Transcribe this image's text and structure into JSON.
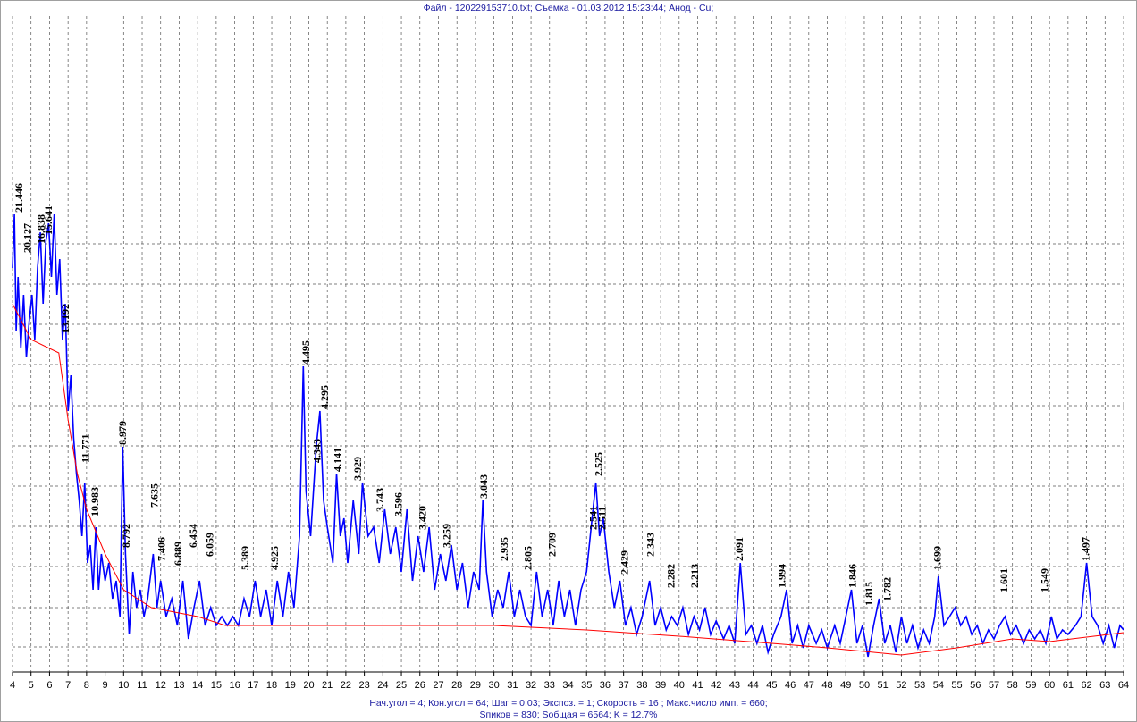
{
  "chart_data": {
    "type": "line",
    "title": "Файл - 120229153710.txt;  Съемка - 01.03.2012 15:23:44;  Анод - Cu;",
    "footer": [
      "Нач.угол = 4;  Кон.угол = 64;  Шаг = 0.03;  Экспоз. = 1;  Скорость = 16 ;  Макс.число имп. = 660;",
      "Sпиков =   830;  Sобщая =   6564;  K =  12.7%"
    ],
    "xlim": [
      4,
      64
    ],
    "xticks": [
      4,
      5,
      6,
      7,
      8,
      9,
      10,
      11,
      12,
      13,
      14,
      15,
      16,
      17,
      18,
      19,
      20,
      21,
      22,
      23,
      24,
      25,
      26,
      27,
      28,
      29,
      30,
      31,
      32,
      33,
      34,
      35,
      36,
      37,
      38,
      39,
      40,
      41,
      42,
      43,
      44,
      45,
      46,
      47,
      48,
      49,
      50,
      51,
      52,
      53,
      54,
      55,
      56,
      57,
      58,
      59,
      60,
      61,
      62,
      63,
      64
    ],
    "ylim": [
      0,
      734
    ],
    "ygrid": [
      28,
      72,
      118,
      163,
      208,
      253,
      298,
      344,
      389,
      434,
      479
    ],
    "grid": true,
    "series": [
      {
        "color": "#0000ff",
        "x": [
          4.0,
          4.1,
          4.2,
          4.3,
          4.45,
          4.6,
          4.75,
          4.9,
          5.05,
          5.2,
          5.35,
          5.5,
          5.65,
          5.8,
          5.95,
          6.1,
          6.25,
          6.4,
          6.55,
          6.7,
          6.85,
          7.0,
          7.15,
          7.3,
          7.45,
          7.6,
          7.75,
          7.9,
          8.05,
          8.2,
          8.35,
          8.5,
          8.65,
          8.8,
          9.0,
          9.2,
          9.4,
          9.6,
          9.8,
          9.95,
          10.1,
          10.3,
          10.5,
          10.7,
          10.9,
          11.1,
          11.3,
          11.6,
          11.8,
          12.0,
          12.3,
          12.6,
          12.9,
          13.2,
          13.5,
          13.8,
          14.1,
          14.4,
          14.7,
          15.0,
          15.3,
          15.6,
          15.9,
          16.2,
          16.5,
          16.8,
          17.1,
          17.4,
          17.7,
          18.0,
          18.3,
          18.6,
          18.9,
          19.2,
          19.5,
          19.7,
          19.85,
          20.1,
          20.4,
          20.6,
          20.8,
          21.0,
          21.3,
          21.5,
          21.7,
          21.9,
          22.1,
          22.4,
          22.7,
          22.9,
          23.2,
          23.5,
          23.8,
          24.1,
          24.4,
          24.7,
          25.0,
          25.3,
          25.6,
          25.9,
          26.2,
          26.5,
          26.8,
          27.1,
          27.4,
          27.7,
          28.0,
          28.3,
          28.6,
          28.9,
          29.2,
          29.4,
          29.6,
          29.9,
          30.2,
          30.5,
          30.8,
          31.1,
          31.4,
          31.7,
          32.0,
          32.3,
          32.6,
          32.9,
          33.2,
          33.5,
          33.8,
          34.1,
          34.4,
          34.7,
          35.0,
          35.3,
          35.5,
          35.7,
          35.9,
          36.2,
          36.5,
          36.8,
          37.1,
          37.4,
          37.7,
          38.0,
          38.4,
          38.7,
          39.0,
          39.3,
          39.6,
          39.9,
          40.2,
          40.5,
          40.8,
          41.1,
          41.4,
          41.7,
          42.0,
          42.4,
          42.7,
          43.0,
          43.3,
          43.6,
          43.9,
          44.2,
          44.5,
          44.8,
          45.1,
          45.5,
          45.8,
          46.1,
          46.4,
          46.7,
          47.0,
          47.4,
          47.7,
          48.0,
          48.4,
          48.7,
          49.0,
          49.3,
          49.6,
          49.9,
          50.2,
          50.5,
          50.8,
          51.1,
          51.4,
          51.7,
          52.0,
          52.3,
          52.6,
          52.9,
          53.2,
          53.5,
          53.8,
          54.0,
          54.3,
          54.6,
          54.9,
          55.2,
          55.5,
          55.8,
          56.1,
          56.4,
          56.7,
          57.0,
          57.3,
          57.6,
          57.9,
          58.2,
          58.6,
          58.9,
          59.2,
          59.5,
          59.8,
          60.1,
          60.4,
          60.7,
          61.0,
          61.4,
          61.7,
          62.0,
          62.3,
          62.6,
          62.9,
          63.2,
          63.5,
          63.8,
          64.0
        ],
        "values": [
          452,
          512,
          382,
          442,
          362,
          422,
          352,
          392,
          422,
          372,
          452,
          492,
          412,
          482,
          502,
          442,
          512,
          422,
          462,
          372,
          412,
          292,
          332,
          262,
          222,
          192,
          152,
          212,
          122,
          142,
          92,
          162,
          92,
          132,
          102,
          122,
          82,
          102,
          62,
          252,
          132,
          42,
          112,
          72,
          92,
          62,
          82,
          132,
          72,
          102,
          62,
          82,
          52,
          102,
          37,
          72,
          102,
          52,
          72,
          52,
          62,
          52,
          62,
          52,
          82,
          62,
          102,
          62,
          92,
          52,
          102,
          62,
          112,
          72,
          152,
          342,
          202,
          152,
          252,
          292,
          192,
          162,
          122,
          222,
          152,
          172,
          122,
          192,
          132,
          212,
          152,
          162,
          122,
          182,
          132,
          162,
          112,
          182,
          102,
          152,
          112,
          162,
          92,
          132,
          102,
          142,
          92,
          122,
          72,
          112,
          92,
          192,
          112,
          62,
          92,
          72,
          112,
          62,
          92,
          62,
          52,
          112,
          62,
          92,
          52,
          102,
          62,
          92,
          52,
          92,
          112,
          172,
          212,
          152,
          172,
          112,
          72,
          102,
          52,
          72,
          42,
          62,
          102,
          52,
          72,
          47,
          62,
          52,
          72,
          42,
          62,
          47,
          72,
          42,
          57,
          37,
          52,
          32,
          122,
          42,
          52,
          32,
          52,
          22,
          42,
          62,
          92,
          32,
          52,
          27,
          52,
          32,
          47,
          27,
          52,
          32,
          62,
          92,
          32,
          52,
          17,
          52,
          82,
          32,
          52,
          22,
          62,
          32,
          52,
          27,
          47,
          32,
          62,
          107,
          52,
          62,
          72,
          52,
          62,
          42,
          52,
          32,
          47,
          37,
          52,
          62,
          42,
          52,
          32,
          47,
          37,
          47,
          32,
          62,
          37,
          47,
          42,
          52,
          62,
          122,
          62,
          52,
          32,
          52,
          27,
          52,
          47
        ]
      },
      {
        "color": "#ff0000",
        "x": [
          4,
          5,
          6.5,
          7.0,
          7.5,
          8,
          9,
          10,
          11.5,
          14,
          15.5,
          30,
          35,
          40,
          45,
          48,
          52,
          55,
          58,
          60,
          64
        ],
        "values": [
          412,
          372,
          357,
          282,
          222,
          182,
          132,
          92,
          72,
          62,
          52,
          52,
          47,
          40,
          32,
          27,
          19,
          27,
          37,
          34,
          44
        ]
      }
    ],
    "annotations": [
      {
        "x": 4.4,
        "y": 512,
        "label": "21.446"
      },
      {
        "x": 4.85,
        "y": 467,
        "label": "20.127"
      },
      {
        "x": 5.6,
        "y": 477,
        "label": "16.838"
      },
      {
        "x": 6.0,
        "y": 487,
        "label": "15.641"
      },
      {
        "x": 6.9,
        "y": 377,
        "label": "13.192"
      },
      {
        "x": 8.0,
        "y": 232,
        "label": "11.771"
      },
      {
        "x": 8.5,
        "y": 172,
        "label": "10.983"
      },
      {
        "x": 10.0,
        "y": 252,
        "label": "8.979"
      },
      {
        "x": 10.2,
        "y": 137,
        "label": "8.792"
      },
      {
        "x": 11.7,
        "y": 182,
        "label": "7.635"
      },
      {
        "x": 12.1,
        "y": 122,
        "label": "7.406"
      },
      {
        "x": 13.0,
        "y": 117,
        "label": "6.889"
      },
      {
        "x": 13.8,
        "y": 137,
        "label": "6.454"
      },
      {
        "x": 14.7,
        "y": 127,
        "label": "6.059"
      },
      {
        "x": 16.6,
        "y": 112,
        "label": "5.389"
      },
      {
        "x": 18.2,
        "y": 112,
        "label": "4.925"
      },
      {
        "x": 19.9,
        "y": 342,
        "label": "4.495"
      },
      {
        "x": 20.5,
        "y": 232,
        "label": "4.343"
      },
      {
        "x": 20.9,
        "y": 292,
        "label": "4.295"
      },
      {
        "x": 21.6,
        "y": 222,
        "label": "4.141"
      },
      {
        "x": 22.7,
        "y": 212,
        "label": "3.929"
      },
      {
        "x": 23.9,
        "y": 177,
        "label": "3.743"
      },
      {
        "x": 24.9,
        "y": 172,
        "label": "3.596"
      },
      {
        "x": 26.2,
        "y": 157,
        "label": "3.420"
      },
      {
        "x": 27.5,
        "y": 137,
        "label": "3.259"
      },
      {
        "x": 29.5,
        "y": 192,
        "label": "3.043"
      },
      {
        "x": 30.6,
        "y": 122,
        "label": "2.935"
      },
      {
        "x": 31.9,
        "y": 112,
        "label": "2.805"
      },
      {
        "x": 33.2,
        "y": 127,
        "label": "2.709"
      },
      {
        "x": 35.4,
        "y": 157,
        "label": "2.541"
      },
      {
        "x": 35.7,
        "y": 217,
        "label": "2.525"
      },
      {
        "x": 35.9,
        "y": 157,
        "label": "2.511"
      },
      {
        "x": 37.1,
        "y": 107,
        "label": "2.429"
      },
      {
        "x": 38.5,
        "y": 127,
        "label": "2.343"
      },
      {
        "x": 39.6,
        "y": 92,
        "label": "2.282"
      },
      {
        "x": 40.9,
        "y": 92,
        "label": "2.213"
      },
      {
        "x": 43.3,
        "y": 122,
        "label": "2.091"
      },
      {
        "x": 45.6,
        "y": 92,
        "label": "1.994"
      },
      {
        "x": 49.4,
        "y": 92,
        "label": "1.846"
      },
      {
        "x": 50.3,
        "y": 72,
        "label": "1.815"
      },
      {
        "x": 51.3,
        "y": 77,
        "label": "1.782"
      },
      {
        "x": 54.0,
        "y": 112,
        "label": "1.699"
      },
      {
        "x": 57.6,
        "y": 87,
        "label": "1.601"
      },
      {
        "x": 59.8,
        "y": 87,
        "label": "1.549"
      },
      {
        "x": 62.0,
        "y": 122,
        "label": "1.497"
      }
    ]
  }
}
